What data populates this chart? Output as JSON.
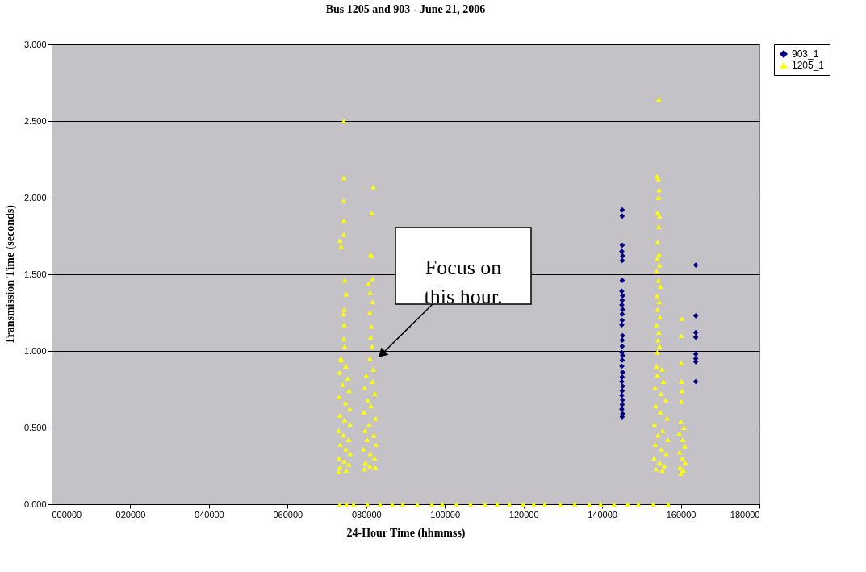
{
  "chart_data": {
    "type": "scatter",
    "title": "Bus 1205 and 903 - June 21, 2006",
    "xlabel": "24-Hour Time (hhmmss)",
    "ylabel": "Transmission Time (seconds)",
    "xlim": [
      0,
      180000
    ],
    "ylim": [
      0,
      3
    ],
    "xticks": [
      {
        "value": 0,
        "label": "000000"
      },
      {
        "value": 20000,
        "label": "020000"
      },
      {
        "value": 40000,
        "label": "040000"
      },
      {
        "value": 60000,
        "label": "060000"
      },
      {
        "value": 80000,
        "label": "080000"
      },
      {
        "value": 100000,
        "label": "100000"
      },
      {
        "value": 120000,
        "label": "120000"
      },
      {
        "value": 140000,
        "label": "140000"
      },
      {
        "value": 160000,
        "label": "160000"
      },
      {
        "value": 180000,
        "label": "180000"
      }
    ],
    "yticks": [
      {
        "value": 0,
        "label": "0.000"
      },
      {
        "value": 0.5,
        "label": "0.500"
      },
      {
        "value": 1,
        "label": "1.000"
      },
      {
        "value": 1.5,
        "label": "1.500"
      },
      {
        "value": 2,
        "label": "2.000"
      },
      {
        "value": 2.5,
        "label": "2.500"
      },
      {
        "value": 3,
        "label": "3.000"
      }
    ],
    "grid": "y",
    "legend": "right",
    "annotations": [
      "Focus on\nthis hour."
    ],
    "series": [
      {
        "name": "903_1",
        "color": "#000080",
        "marker": "diamond",
        "x": [
          145100,
          145100,
          145100,
          145000,
          145200,
          145100,
          145100,
          145000,
          145200,
          145100,
          145000,
          145200,
          145100,
          145100,
          145000,
          145200,
          145100,
          145100,
          145000,
          145200,
          145100,
          145000,
          145200,
          145100,
          145000,
          145200,
          145100,
          145000,
          145200,
          145100,
          145000,
          145200,
          145100,
          163800,
          163800,
          163800,
          163800,
          163800,
          163800,
          163800,
          163800
        ],
        "values": [
          1.92,
          1.88,
          1.69,
          1.65,
          1.62,
          1.59,
          1.46,
          1.39,
          1.36,
          1.33,
          1.3,
          1.27,
          1.24,
          1.2,
          1.17,
          1.1,
          1.07,
          1.03,
          0.99,
          0.97,
          0.94,
          0.9,
          0.86,
          0.83,
          0.8,
          0.77,
          0.74,
          0.71,
          0.68,
          0.65,
          0.62,
          0.59,
          0.57,
          1.56,
          1.23,
          1.12,
          1.09,
          0.98,
          0.95,
          0.93,
          0.8
        ]
      },
      {
        "name": "1205_1",
        "color": "#ffff00",
        "marker": "triangle",
        "x": [
          74300,
          74300,
          74300,
          74300,
          74300,
          73300,
          73600,
          74500,
          74900,
          74400,
          74200,
          74400,
          74300,
          74500,
          73700,
          73500,
          74800,
          73200,
          75300,
          74000,
          75600,
          73100,
          74700,
          75800,
          73300,
          74500,
          75900,
          73000,
          74200,
          75500,
          73400,
          74800,
          75900,
          73100,
          74400,
          75600,
          73300,
          74900,
          73000,
          81800,
          81400,
          81100,
          81400,
          81600,
          80600,
          81000,
          81600,
          80900,
          81300,
          81100,
          81500,
          80900,
          81800,
          80000,
          81600,
          79600,
          82200,
          80400,
          81200,
          79400,
          82400,
          80800,
          79700,
          81900,
          80200,
          82500,
          79300,
          81000,
          82100,
          79800,
          80900,
          82300,
          79500,
          154400,
          153900,
          154300,
          154500,
          154300,
          154100,
          154600,
          154400,
          154100,
          154400,
          154000,
          154600,
          153800,
          154300,
          154800,
          153900,
          154500,
          154100,
          154700,
          153800,
          154400,
          154200,
          154600,
          154000,
          153800,
          155200,
          154000,
          155600,
          153400,
          155000,
          156200,
          153600,
          154800,
          156500,
          153300,
          155400,
          154200,
          156700,
          153500,
          155100,
          156300,
          153200,
          154600,
          155800,
          153700,
          155300,
          160300,
          160100,
          160100,
          160200,
          160300,
          160100,
          160000,
          160800,
          159600,
          160500,
          161000,
          159700,
          160400,
          161100,
          159800,
          160600,
          160000,
          73300,
          75000,
          76800,
          80300,
          83500,
          86600,
          89300,
          93000,
          96700,
          99300,
          102900,
          106500,
          110200,
          113300,
          116400,
          119900,
          122600,
          125400,
          129300,
          133000,
          136700,
          139600,
          143000,
          146500,
          149200,
          153000,
          156800
        ],
        "values": [
          2.5,
          2.13,
          1.98,
          1.85,
          1.76,
          1.72,
          1.68,
          1.46,
          1.37,
          1.27,
          1.24,
          1.17,
          1.08,
          1.03,
          0.94,
          0.95,
          0.9,
          0.86,
          0.82,
          0.78,
          0.74,
          0.7,
          0.66,
          0.62,
          0.58,
          0.55,
          0.52,
          0.48,
          0.45,
          0.42,
          0.39,
          0.36,
          0.33,
          0.3,
          0.28,
          0.26,
          0.24,
          0.22,
          0.21,
          2.07,
          1.9,
          1.63,
          1.62,
          1.47,
          1.44,
          1.38,
          1.32,
          1.25,
          1.16,
          1.09,
          1.03,
          0.95,
          0.88,
          0.84,
          0.8,
          0.76,
          0.72,
          0.68,
          0.64,
          0.6,
          0.56,
          0.52,
          0.48,
          0.45,
          0.42,
          0.39,
          0.36,
          0.33,
          0.3,
          0.27,
          0.25,
          0.24,
          0.23,
          2.64,
          2.14,
          2.12,
          2.05,
          2.0,
          1.9,
          1.88,
          1.81,
          1.71,
          1.63,
          1.6,
          1.56,
          1.52,
          1.46,
          1.42,
          1.36,
          1.32,
          1.27,
          1.22,
          1.17,
          1.12,
          1.07,
          1.03,
          0.99,
          0.9,
          0.88,
          0.84,
          0.8,
          0.76,
          0.72,
          0.68,
          0.64,
          0.6,
          0.56,
          0.52,
          0.48,
          0.45,
          0.42,
          0.39,
          0.36,
          0.33,
          0.3,
          0.27,
          0.25,
          0.23,
          0.22,
          1.21,
          1.1,
          0.92,
          0.8,
          0.74,
          0.67,
          0.54,
          0.5,
          0.46,
          0.42,
          0.38,
          0.34,
          0.3,
          0.27,
          0.24,
          0.22,
          0.2,
          0,
          0,
          0,
          0,
          0,
          0,
          0,
          0,
          0,
          0,
          0,
          0,
          0,
          0,
          0,
          0,
          0,
          0,
          0,
          0,
          0,
          0,
          0,
          0,
          0,
          0,
          0
        ]
      }
    ]
  }
}
